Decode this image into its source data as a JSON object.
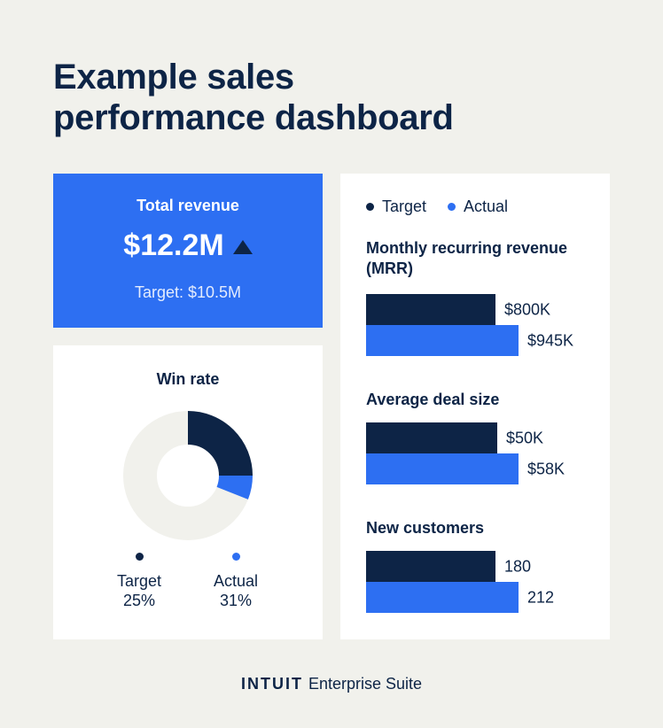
{
  "page": {
    "title_line1": "Example sales",
    "title_line2": "performance dashboard"
  },
  "revenue": {
    "title": "Total revenue",
    "value": "$12.2M",
    "target": "Target: $10.5M"
  },
  "win_rate": {
    "title": "Win rate",
    "target_label": "Target",
    "target_value": "25%",
    "actual_label": "Actual",
    "actual_value": "31%"
  },
  "legend": {
    "target": "Target",
    "actual": "Actual"
  },
  "footer": {
    "brand": "INTUIT",
    "product": "Enterprise Suite"
  },
  "colors": {
    "target": "#0d2446",
    "actual": "#2d6ff2",
    "track": "#f1f1ec",
    "background": "#f1f1ec"
  },
  "chart_data": [
    {
      "type": "pie",
      "title": "Win rate",
      "categories": [
        "Target",
        "Actual"
      ],
      "values": [
        25,
        31
      ],
      "unit": "%",
      "note_style": "donut"
    },
    {
      "type": "bar",
      "title": "Monthly recurring revenue (MRR)",
      "categories": [
        "Target",
        "Actual"
      ],
      "values": [
        800,
        945
      ],
      "labels": [
        "$800K",
        "$945K"
      ]
    },
    {
      "type": "bar",
      "title": "Average deal size",
      "categories": [
        "Target",
        "Actual"
      ],
      "values": [
        50,
        58
      ],
      "labels": [
        "$50K",
        "$58K"
      ]
    },
    {
      "type": "bar",
      "title": "New customers",
      "categories": [
        "Target",
        "Actual"
      ],
      "values": [
        180,
        212
      ],
      "labels": [
        "180",
        "212"
      ]
    }
  ]
}
